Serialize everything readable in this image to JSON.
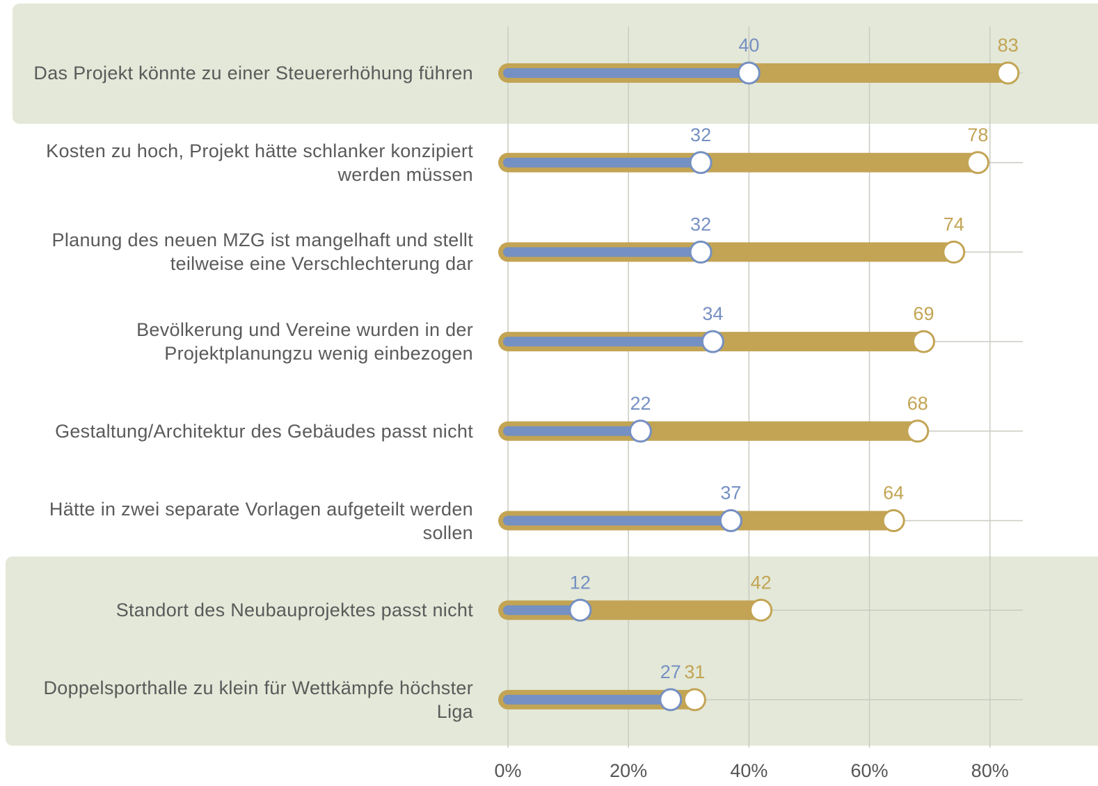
{
  "chart_data": {
    "type": "dumbbell",
    "categories": [
      "Das Projekt könnte zu einer Steuererhöhung führen",
      "Kosten zu hoch, Projekt hätte schlanker konzipiert werden müssen",
      "Planung des neuen MZG ist mangelhaft und stellt teilweise eine Verschlechterung dar",
      "Bevölkerung und Vereine wurden in der Projektplanungzu wenig einbezogen",
      "Gestaltung/Architektur des Gebäudes passt nicht",
      "Hätte in zwei separate Vorlagen aufgeteilt werden sollen",
      "Standort des Neubauprojektes passt nicht",
      "Doppelsporthalle zu klein für Wettkämpfe höchster Liga"
    ],
    "series": [
      {
        "color": "#7590c2",
        "values": [
          40,
          32,
          32,
          34,
          22,
          37,
          12,
          27
        ]
      },
      {
        "color": "#c2a454",
        "values": [
          83,
          78,
          74,
          69,
          68,
          64,
          42,
          31
        ]
      }
    ],
    "xlim": [
      0,
      85
    ],
    "xticks": [
      {
        "value": 0,
        "label": "0%"
      },
      {
        "value": 20,
        "label": "20%"
      },
      {
        "value": 40,
        "label": "40%"
      },
      {
        "value": 60,
        "label": "60%"
      },
      {
        "value": 80,
        "label": "80%"
      }
    ],
    "grid": true
  }
}
